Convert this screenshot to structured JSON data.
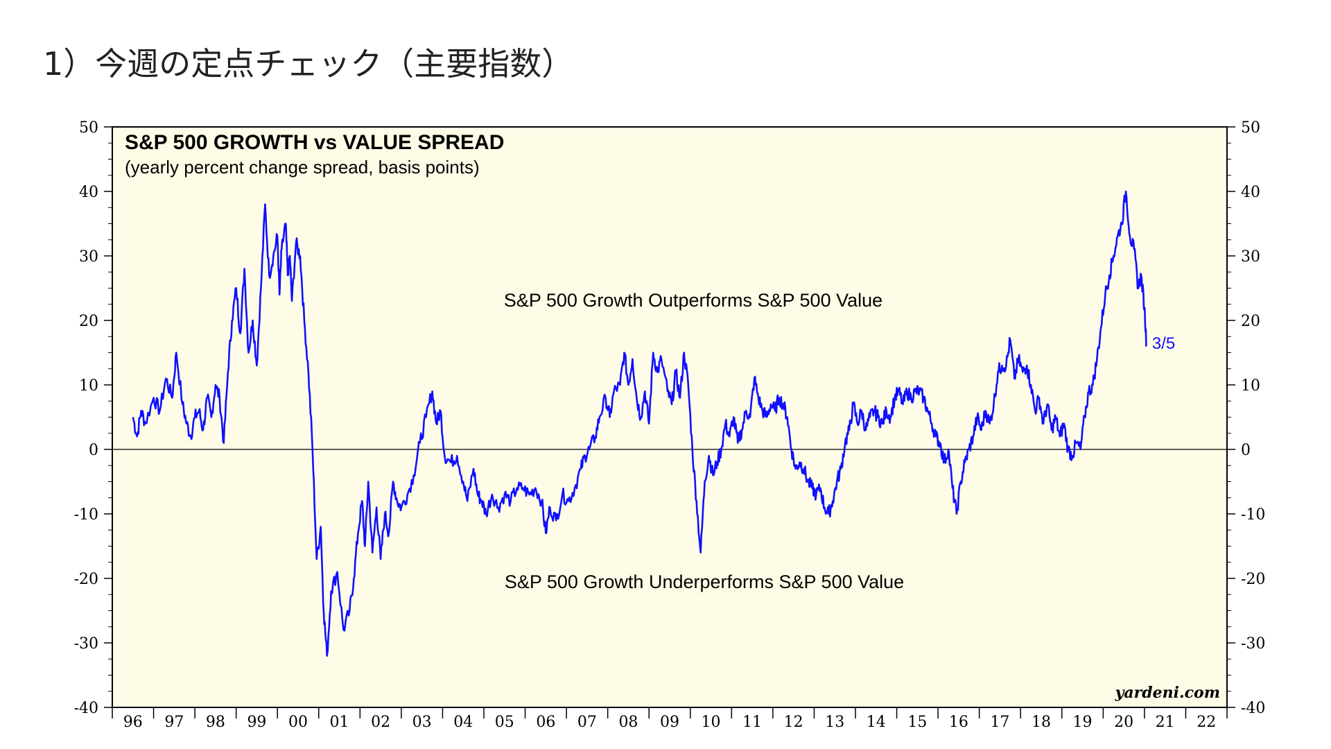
{
  "page": {
    "title": "1）今週の定点チェック（主要指数）"
  },
  "colors": {
    "plot_background": "#fefce6",
    "series_line": "#1010ff",
    "axis": "#000000"
  },
  "chart_data": {
    "type": "line",
    "title": "S&P 500 GROWTH vs VALUE SPREAD",
    "subtitle": "(yearly percent change spread, basis points)",
    "xlabel": "",
    "ylabel": "",
    "ylim": [
      -40,
      50
    ],
    "xlim": [
      1996,
      2023
    ],
    "yticks": [
      -40,
      -30,
      -20,
      -10,
      0,
      10,
      20,
      30,
      40,
      50
    ],
    "ytick_labels": [
      "-40",
      "-30",
      "-20",
      "-10",
      "0",
      "10",
      "20",
      "30",
      "40",
      "50"
    ],
    "xtick_labels": [
      "96",
      "97",
      "98",
      "99",
      "00",
      "01",
      "02",
      "03",
      "04",
      "05",
      "06",
      "07",
      "08",
      "09",
      "10",
      "11",
      "12",
      "13",
      "14",
      "15",
      "16",
      "17",
      "18",
      "19",
      "20",
      "21",
      "22"
    ],
    "grid": false,
    "zero_line": true,
    "annotations": {
      "upper": "S&P 500 Growth Outperforms S&P 500 Value",
      "lower": "S&P 500 Growth Underperforms S&P 500 Value",
      "end_label": "3/5",
      "source": "yardeni.com"
    },
    "series": [
      {
        "values": [
          [
            1996.5,
            5
          ],
          [
            1996.6,
            2
          ],
          [
            1996.7,
            6
          ],
          [
            1996.8,
            4
          ],
          [
            1997.0,
            8
          ],
          [
            1997.15,
            6
          ],
          [
            1997.3,
            11
          ],
          [
            1997.45,
            8
          ],
          [
            1997.55,
            15
          ],
          [
            1997.7,
            7
          ],
          [
            1997.8,
            4
          ],
          [
            1997.9,
            2
          ],
          [
            1998.0,
            5
          ],
          [
            1998.1,
            6
          ],
          [
            1998.2,
            3
          ],
          [
            1998.3,
            8
          ],
          [
            1998.4,
            5
          ],
          [
            1998.5,
            10
          ],
          [
            1998.6,
            8
          ],
          [
            1998.7,
            1
          ],
          [
            1998.8,
            12
          ],
          [
            1998.9,
            20
          ],
          [
            1999.0,
            25
          ],
          [
            1999.1,
            18
          ],
          [
            1999.2,
            28
          ],
          [
            1999.3,
            15
          ],
          [
            1999.4,
            20
          ],
          [
            1999.5,
            13
          ],
          [
            1999.6,
            25
          ],
          [
            1999.7,
            38
          ],
          [
            1999.8,
            27
          ],
          [
            1999.9,
            30
          ],
          [
            2000.0,
            33
          ],
          [
            2000.05,
            24
          ],
          [
            2000.1,
            31
          ],
          [
            2000.2,
            35
          ],
          [
            2000.25,
            27
          ],
          [
            2000.3,
            30
          ],
          [
            2000.35,
            23
          ],
          [
            2000.45,
            32
          ],
          [
            2000.55,
            30
          ],
          [
            2000.65,
            20
          ],
          [
            2000.75,
            12
          ],
          [
            2000.85,
            0
          ],
          [
            2000.95,
            -17
          ],
          [
            2001.05,
            -12
          ],
          [
            2001.12,
            -25
          ],
          [
            2001.2,
            -32
          ],
          [
            2001.3,
            -22
          ],
          [
            2001.45,
            -19
          ],
          [
            2001.6,
            -28
          ],
          [
            2001.75,
            -25
          ],
          [
            2001.85,
            -20
          ],
          [
            2001.95,
            -13
          ],
          [
            2002.05,
            -8
          ],
          [
            2002.12,
            -15
          ],
          [
            2002.2,
            -5
          ],
          [
            2002.3,
            -16
          ],
          [
            2002.4,
            -9
          ],
          [
            2002.5,
            -17
          ],
          [
            2002.6,
            -10
          ],
          [
            2002.7,
            -13
          ],
          [
            2002.8,
            -5
          ],
          [
            2002.9,
            -8
          ],
          [
            2003.0,
            -9
          ],
          [
            2003.15,
            -7
          ],
          [
            2003.3,
            -4
          ],
          [
            2003.45,
            1
          ],
          [
            2003.6,
            5
          ],
          [
            2003.75,
            9
          ],
          [
            2003.85,
            4
          ],
          [
            2003.95,
            6
          ],
          [
            2004.05,
            -1
          ],
          [
            2004.2,
            -2
          ],
          [
            2004.35,
            -1
          ],
          [
            2004.5,
            -5
          ],
          [
            2004.6,
            -8
          ],
          [
            2004.75,
            -3
          ],
          [
            2004.85,
            -7
          ],
          [
            2004.95,
            -8
          ],
          [
            2005.05,
            -10
          ],
          [
            2005.2,
            -7
          ],
          [
            2005.35,
            -9
          ],
          [
            2005.5,
            -7
          ],
          [
            2005.65,
            -8
          ],
          [
            2005.8,
            -6
          ],
          [
            2005.95,
            -6
          ],
          [
            2006.1,
            -7
          ],
          [
            2006.25,
            -6
          ],
          [
            2006.4,
            -8
          ],
          [
            2006.5,
            -13
          ],
          [
            2006.6,
            -9
          ],
          [
            2006.75,
            -11
          ],
          [
            2006.9,
            -7
          ],
          [
            2007.05,
            -8
          ],
          [
            2007.2,
            -6
          ],
          [
            2007.35,
            -3
          ],
          [
            2007.45,
            -1
          ],
          [
            2007.55,
            0
          ],
          [
            2007.7,
            2
          ],
          [
            2007.8,
            5
          ],
          [
            2007.95,
            8
          ],
          [
            2008.05,
            5
          ],
          [
            2008.15,
            9
          ],
          [
            2008.3,
            10
          ],
          [
            2008.4,
            15
          ],
          [
            2008.5,
            10
          ],
          [
            2008.6,
            14
          ],
          [
            2008.7,
            8
          ],
          [
            2008.8,
            5
          ],
          [
            2008.9,
            9
          ],
          [
            2009.0,
            4
          ],
          [
            2009.1,
            15
          ],
          [
            2009.2,
            12
          ],
          [
            2009.3,
            14
          ],
          [
            2009.45,
            9
          ],
          [
            2009.55,
            7
          ],
          [
            2009.65,
            12
          ],
          [
            2009.75,
            8
          ],
          [
            2009.85,
            15
          ],
          [
            2009.95,
            10
          ],
          [
            2010.05,
            0
          ],
          [
            2010.15,
            -8
          ],
          [
            2010.25,
            -16
          ],
          [
            2010.35,
            -5
          ],
          [
            2010.45,
            -1
          ],
          [
            2010.55,
            -4
          ],
          [
            2010.65,
            -2
          ],
          [
            2010.75,
            0
          ],
          [
            2010.85,
            4
          ],
          [
            2010.95,
            2
          ],
          [
            2011.05,
            5
          ],
          [
            2011.15,
            1
          ],
          [
            2011.25,
            3
          ],
          [
            2011.35,
            6
          ],
          [
            2011.45,
            5
          ],
          [
            2011.55,
            11
          ],
          [
            2011.65,
            8
          ],
          [
            2011.75,
            6
          ],
          [
            2011.85,
            5
          ],
          [
            2011.95,
            7
          ],
          [
            2012.05,
            6
          ],
          [
            2012.15,
            8
          ],
          [
            2012.25,
            7
          ],
          [
            2012.35,
            5
          ],
          [
            2012.45,
            0
          ],
          [
            2012.55,
            -3
          ],
          [
            2012.65,
            -2
          ],
          [
            2012.75,
            -3
          ],
          [
            2012.85,
            -5
          ],
          [
            2012.95,
            -6
          ],
          [
            2013.05,
            -7
          ],
          [
            2013.15,
            -6
          ],
          [
            2013.25,
            -9
          ],
          [
            2013.35,
            -10
          ],
          [
            2013.45,
            -8
          ],
          [
            2013.55,
            -5
          ],
          [
            2013.65,
            -3
          ],
          [
            2013.75,
            1
          ],
          [
            2013.85,
            3
          ],
          [
            2013.95,
            7
          ],
          [
            2014.05,
            4
          ],
          [
            2014.15,
            6
          ],
          [
            2014.25,
            3
          ],
          [
            2014.35,
            5
          ],
          [
            2014.45,
            6
          ],
          [
            2014.55,
            5
          ],
          [
            2014.65,
            4
          ],
          [
            2014.75,
            6
          ],
          [
            2014.85,
            5
          ],
          [
            2014.95,
            8
          ],
          [
            2015.05,
            9
          ],
          [
            2015.15,
            7
          ],
          [
            2015.25,
            9
          ],
          [
            2015.35,
            8
          ],
          [
            2015.45,
            9
          ],
          [
            2015.55,
            9
          ],
          [
            2015.65,
            8
          ],
          [
            2015.75,
            6
          ],
          [
            2015.85,
            4
          ],
          [
            2015.95,
            2
          ],
          [
            2016.05,
            1
          ],
          [
            2016.15,
            -2
          ],
          [
            2016.25,
            0
          ],
          [
            2016.35,
            -6
          ],
          [
            2016.45,
            -10
          ],
          [
            2016.55,
            -5
          ],
          [
            2016.65,
            -2
          ],
          [
            2016.75,
            0
          ],
          [
            2016.85,
            2
          ],
          [
            2016.95,
            5
          ],
          [
            2017.05,
            3
          ],
          [
            2017.15,
            6
          ],
          [
            2017.25,
            4
          ],
          [
            2017.35,
            7
          ],
          [
            2017.45,
            12
          ],
          [
            2017.55,
            13
          ],
          [
            2017.65,
            13
          ],
          [
            2017.75,
            17
          ],
          [
            2017.85,
            11
          ],
          [
            2017.95,
            14
          ],
          [
            2018.05,
            12
          ],
          [
            2018.15,
            13
          ],
          [
            2018.25,
            10
          ],
          [
            2018.35,
            6
          ],
          [
            2018.45,
            8
          ],
          [
            2018.55,
            4
          ],
          [
            2018.65,
            7
          ],
          [
            2018.75,
            3
          ],
          [
            2018.85,
            5
          ],
          [
            2018.95,
            2
          ],
          [
            2019.05,
            4
          ],
          [
            2019.15,
            0
          ],
          [
            2019.25,
            -1
          ],
          [
            2019.35,
            1
          ],
          [
            2019.45,
            0
          ],
          [
            2019.55,
            5
          ],
          [
            2019.65,
            9
          ],
          [
            2019.75,
            10
          ],
          [
            2019.85,
            14
          ],
          [
            2019.95,
            19
          ],
          [
            2020.05,
            24
          ],
          [
            2020.15,
            27
          ],
          [
            2020.25,
            30
          ],
          [
            2020.35,
            33
          ],
          [
            2020.45,
            35
          ],
          [
            2020.55,
            40
          ],
          [
            2020.65,
            33
          ],
          [
            2020.75,
            31
          ],
          [
            2020.85,
            25
          ],
          [
            2020.92,
            27
          ],
          [
            2021.0,
            22
          ],
          [
            2021.05,
            16
          ]
        ]
      }
    ]
  }
}
